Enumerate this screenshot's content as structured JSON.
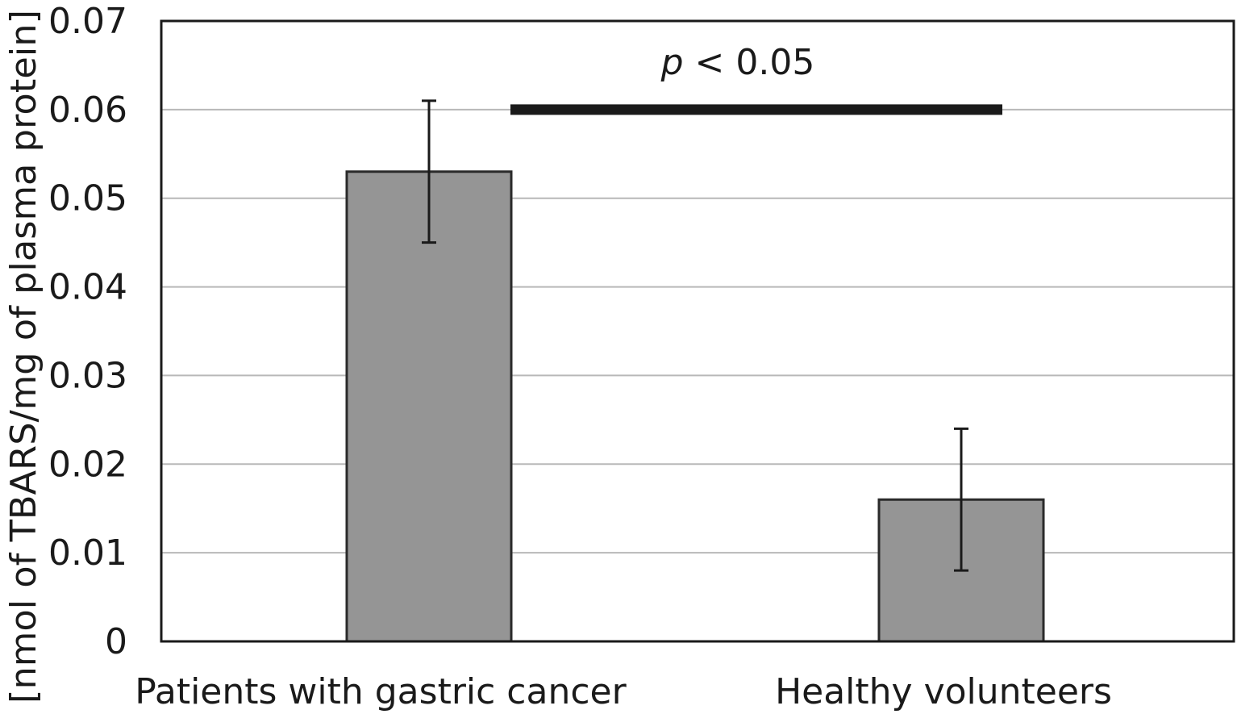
{
  "chart_data": {
    "type": "bar",
    "categories": [
      "Patients with gastric cancer",
      "Healthy volunteers"
    ],
    "values": [
      0.053,
      0.016
    ],
    "error_bars": [
      {
        "low": 0.045,
        "high": 0.061
      },
      {
        "low": 0.008,
        "high": 0.024
      }
    ],
    "ylabel": "[nmol of TBARS/mg of plasma protein]",
    "xlabel": "",
    "title": "",
    "ylim": [
      0,
      0.07
    ],
    "yticks": [
      {
        "value": 0,
        "label": "0"
      },
      {
        "value": 0.01,
        "label": "0.01"
      },
      {
        "value": 0.02,
        "label": "0.02"
      },
      {
        "value": 0.03,
        "label": "0.03"
      },
      {
        "value": 0.04,
        "label": "0.04"
      },
      {
        "value": 0.05,
        "label": "0.05"
      },
      {
        "value": 0.06,
        "label": "0.06"
      },
      {
        "value": 0.07,
        "label": "0.07"
      }
    ],
    "grid": true,
    "significance": {
      "p_symbol": "p",
      "text": " < 0.05",
      "level": 0.06
    },
    "colors": {
      "bar": "#959595",
      "bar_edge": "#2a2a2a",
      "grid": "#b8b8b8",
      "axis": "#1a1a1a",
      "sig_bar": "#1a1a1a"
    }
  }
}
